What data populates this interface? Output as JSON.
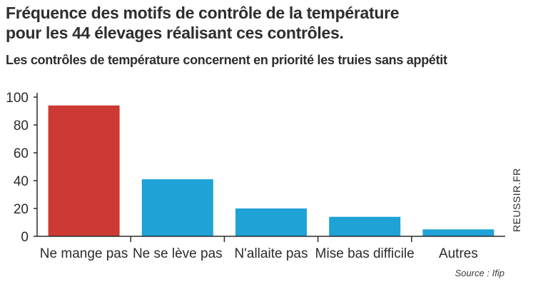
{
  "header": {
    "title_line1": "Fréquence des motifs de contrôle de la température",
    "title_line2": "pour les 44 élevages réalisant ces contrôles.",
    "subtitle": "Les contrôles de température concernent en priorité les truies sans appétit"
  },
  "footer": {
    "source": "Source : Ifip",
    "credit": "REUSSIR.FR"
  },
  "colors": {
    "highlight": "#cc3a33",
    "bars": "#1fa2d6",
    "axis": "#2b2b2b"
  },
  "chart_data": {
    "type": "bar",
    "title": "Fréquence des motifs de contrôle de la température pour les 44 élevages réalisant ces contrôles.",
    "subtitle": "Les contrôles de température concernent en priorité les truies sans appétit",
    "categories": [
      "Ne mange pas",
      "Ne se lève pas",
      "N'allaite pas",
      "Mise bas difficile",
      "Autres"
    ],
    "values": [
      94,
      41,
      20,
      14,
      5
    ],
    "highlight_index": 0,
    "ylim": [
      0,
      100
    ],
    "yticks": [
      0,
      20,
      40,
      60,
      80,
      100
    ],
    "grid": false,
    "xlabel": "",
    "ylabel": ""
  }
}
